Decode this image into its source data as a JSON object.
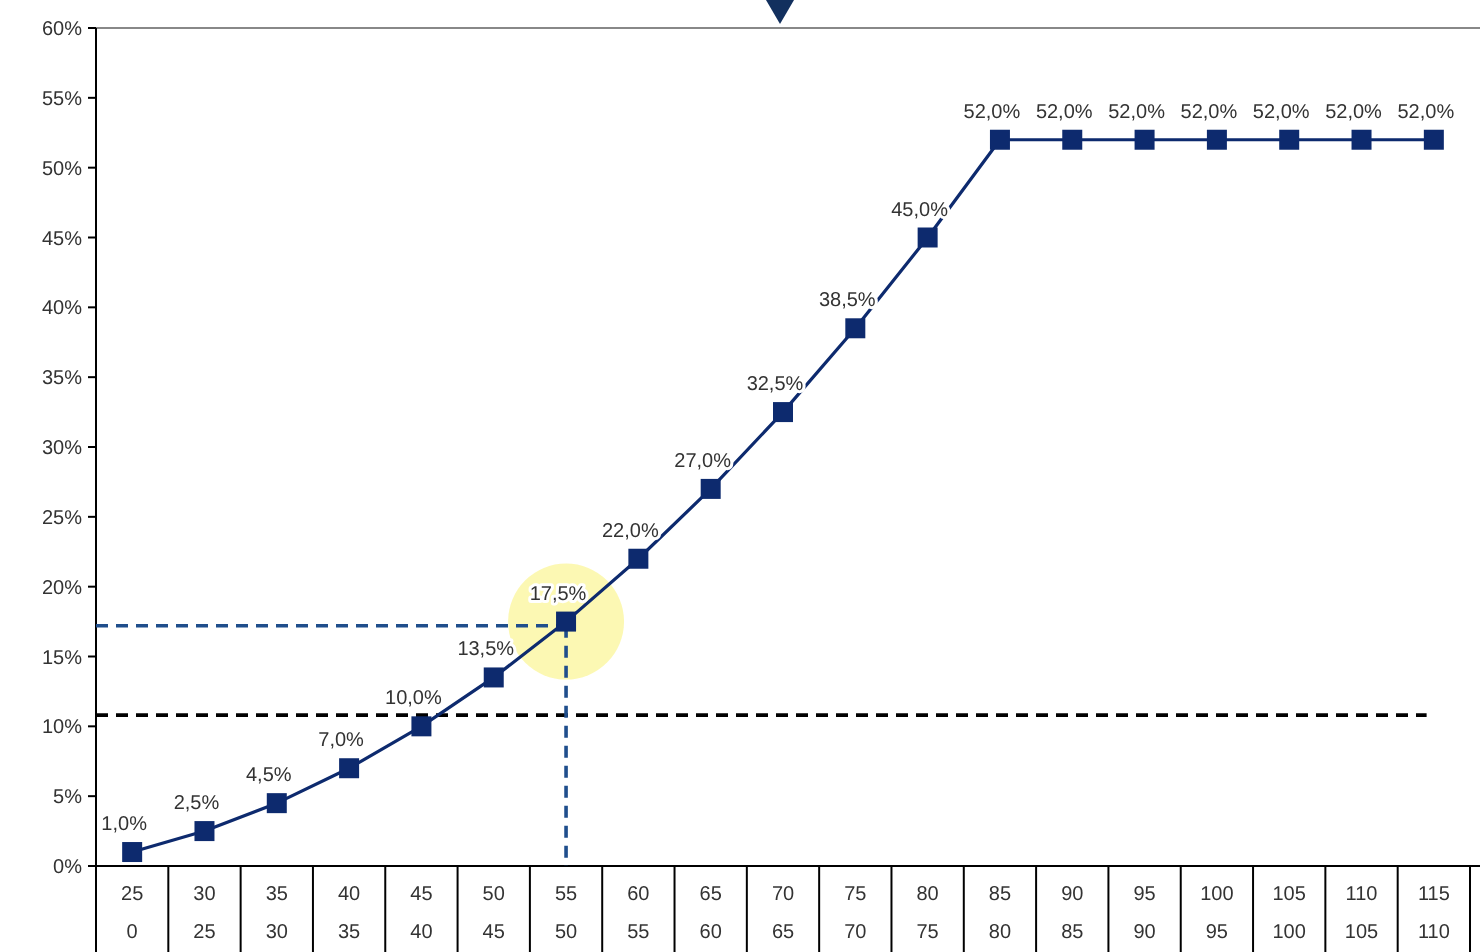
{
  "chart_data": {
    "type": "line",
    "categories": [
      "25\n0",
      "30\n25",
      "35\n30",
      "40\n35",
      "45\n40",
      "50\n45",
      "55\n50",
      "60\n55",
      "65\n60",
      "70\n65",
      "75\n70",
      "80\n75",
      "85\n80",
      "90\n85",
      "95\n90",
      "100\n95",
      "105\n100",
      "110\n105",
      "115\n110"
    ],
    "series": [
      {
        "color": "#0d2a6e",
        "values": [
          1.0,
          2.5,
          4.5,
          7.0,
          10.0,
          13.5,
          17.5,
          22.0,
          27.0,
          32.5,
          38.5,
          45.0,
          52.0,
          52.0,
          52.0,
          52.0,
          52.0,
          52.0,
          52.0
        ],
        "value_labels": [
          "1,0%",
          "2,5%",
          "4,5%",
          "7,0%",
          "10,0%",
          "13,5%",
          "17,5%",
          "22,0%",
          "27,0%",
          "32,5%",
          "38,5%",
          "45,0%",
          "52,0%",
          "52,0%",
          "52,0%",
          "52,0%",
          "52,0%",
          "52,0%",
          "52,0%"
        ]
      }
    ],
    "ylim": [
      0,
      60
    ],
    "yticks": [
      {
        "value": 0,
        "label": "0%"
      },
      {
        "value": 5,
        "label": "5%"
      },
      {
        "value": 10,
        "label": "10%"
      },
      {
        "value": 15,
        "label": "15%"
      },
      {
        "value": 20,
        "label": "20%"
      },
      {
        "value": 25,
        "label": "25%"
      },
      {
        "value": 30,
        "label": "30%"
      },
      {
        "value": 35,
        "label": "35%"
      },
      {
        "value": 40,
        "label": "40%"
      },
      {
        "value": 45,
        "label": "45%"
      },
      {
        "value": 50,
        "label": "50%"
      },
      {
        "value": 55,
        "label": "55%"
      },
      {
        "value": 60,
        "label": "60%"
      }
    ],
    "ref_lines": [
      {
        "axis": "y",
        "value": 10.8,
        "color": "#000000",
        "line_style": "dashed"
      },
      {
        "axis": "y",
        "value": 17.2,
        "color": "#1f4e8c",
        "line_style": "dashed"
      },
      {
        "axis": "x",
        "value": "55\n50",
        "color": "#1f4e8c",
        "line_style": "dashed"
      }
    ],
    "marker": "square",
    "line_style": "solid",
    "grid": false
  }
}
